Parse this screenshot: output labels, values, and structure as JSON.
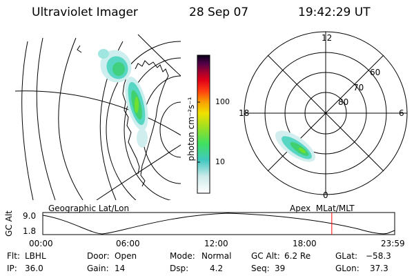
{
  "header": {
    "instrument": "Ultraviolet Imager",
    "date": "28 Sep 07",
    "time": "19:42:29 UT"
  },
  "colorbar": {
    "unit_label": "photon cm⁻²s⁻¹",
    "ticks": [
      "100",
      "10"
    ]
  },
  "polar_plot": {
    "mlt_labels": {
      "top": "12",
      "right": "6",
      "bottom": "0",
      "left": "18"
    },
    "lat_labels": [
      "60",
      "70",
      "80"
    ]
  },
  "map_labels": {
    "geographic": "Geographic Lat/Lon",
    "apex": "Apex  MLat/MLT"
  },
  "altitude_strip": {
    "axis_label": "GC Alt",
    "y_ticks": [
      "9.0",
      "1.8"
    ],
    "x_ticks": [
      "00:00",
      "06:00",
      "12:00",
      "18:00",
      "23:59"
    ],
    "current_time_marker_hours": 19.71,
    "marker_color": "#ff0000"
  },
  "status": {
    "flt_label": "Flt:",
    "flt_value": "LBHL",
    "ip_label": "IP:",
    "ip_value": "36.0",
    "door_label": "Door:",
    "door_value": "Open",
    "gain_label": "Gain:",
    "gain_value": "14",
    "mode_label": "Mode:",
    "mode_value": "Normal",
    "dsp_label": "Dsp:",
    "dsp_value": "4.2",
    "gcalt_label": "GC Alt:",
    "gcalt_value": "6.2 Re",
    "seq_label": "Seq:",
    "seq_value": "39",
    "glat_label": "GLat:",
    "glat_value": "−58.3",
    "glon_label": "GLon:",
    "glon_value": "37.3"
  },
  "colors": {
    "colorbar_stops": [
      "#ffffff",
      "#d8eeee",
      "#40c8c0",
      "#40e060",
      "#a0e020",
      "#f0e000",
      "#f8a000",
      "#ff5010",
      "#e80010",
      "#b00020",
      "#500040",
      "#100020"
    ],
    "aurora_colors": [
      "#c8ecec",
      "#60d8c8",
      "#40d080",
      "#60e040"
    ]
  }
}
